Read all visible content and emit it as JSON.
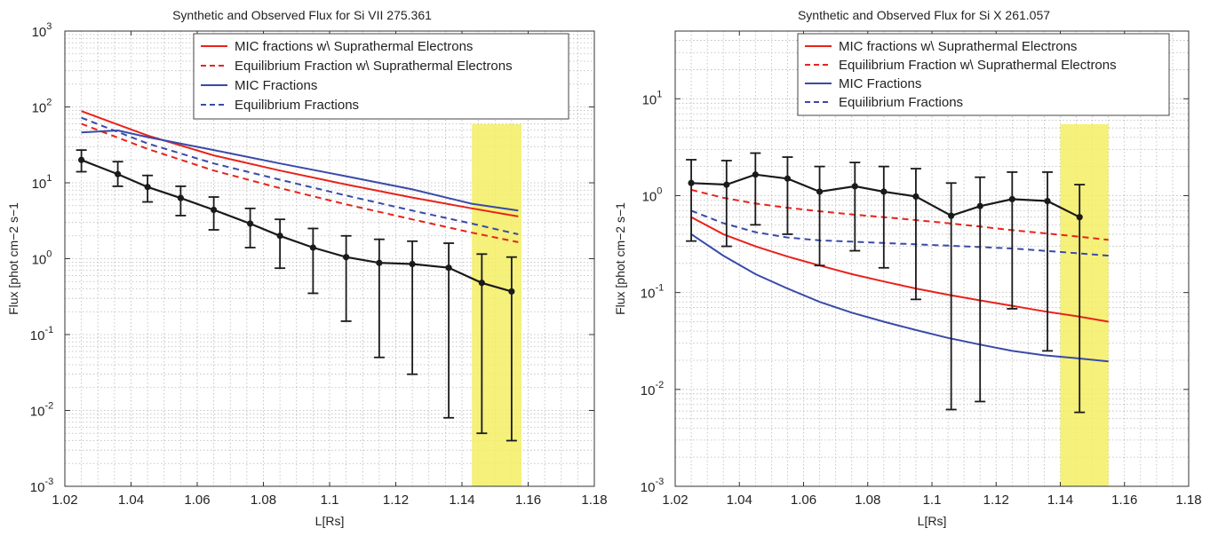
{
  "colors": {
    "mic_suprathermal": "#e8231b",
    "eq_suprathermal": "#e8231b",
    "mic": "#3a4aa8",
    "eq": "#3a4aa8",
    "observed": "#1a1a1a",
    "highlight": "#f3ee63"
  },
  "chart_data": [
    {
      "type": "line",
      "title": "Synthetic and Observed Flux for Si VII 275.361",
      "xlabel": "L[Rs]",
      "ylabel": "Flux [phot cm−2 s−1",
      "yscale": "log",
      "xlim": [
        1.02,
        1.18
      ],
      "ylim": [
        0.001,
        1000
      ],
      "grid": true,
      "legend_position": "top-right",
      "xticks": [
        "1.02",
        "1.04",
        "1.06",
        "1.08",
        "1.1",
        "1.12",
        "1.14",
        "1.16",
        "1.18"
      ],
      "yticks": [
        {
          "base": "10",
          "exp": "-3"
        },
        {
          "base": "10",
          "exp": "-2"
        },
        {
          "base": "10",
          "exp": "-1"
        },
        {
          "base": "10",
          "exp": "0"
        },
        {
          "base": "10",
          "exp": "1"
        },
        {
          "base": "10",
          "exp": "2"
        },
        {
          "base": "10",
          "exp": "3"
        }
      ],
      "highlight_x": [
        1.143,
        1.158
      ],
      "series": [
        {
          "name": "MIC fractions w\\ Suprathermal Electrons",
          "style": "solid",
          "color": "#e8231b",
          "x": [
            1.025,
            1.045,
            1.065,
            1.085,
            1.105,
            1.125,
            1.143,
            1.157
          ],
          "y": [
            88,
            42,
            23,
            14.5,
            9.5,
            6.4,
            4.6,
            3.6
          ]
        },
        {
          "name": "Equilibrium Fraction w\\ Suprathermal Electrons",
          "style": "dashed",
          "color": "#e8231b",
          "x": [
            1.025,
            1.045,
            1.065,
            1.085,
            1.105,
            1.125,
            1.143,
            1.157
          ],
          "y": [
            60,
            28,
            14.5,
            8.5,
            5.2,
            3.3,
            2.2,
            1.65
          ]
        },
        {
          "name": "MIC Fractions",
          "style": "solid",
          "color": "#3a4aa8",
          "x": [
            1.025,
            1.036,
            1.045,
            1.065,
            1.085,
            1.105,
            1.125,
            1.143,
            1.157
          ],
          "y": [
            46,
            49,
            40,
            27,
            18,
            12.2,
            8.2,
            5.3,
            4.3
          ]
        },
        {
          "name": "Equilibrium Fractions",
          "style": "dashed",
          "color": "#3a4aa8",
          "x": [
            1.025,
            1.045,
            1.065,
            1.085,
            1.105,
            1.125,
            1.143,
            1.157
          ],
          "y": [
            72,
            33,
            18,
            11,
            6.8,
            4.3,
            2.9,
            2.1
          ]
        }
      ],
      "observed": {
        "x": [
          1.025,
          1.036,
          1.045,
          1.055,
          1.065,
          1.076,
          1.085,
          1.095,
          1.105,
          1.115,
          1.125,
          1.136,
          1.146,
          1.155
        ],
        "y": [
          20,
          13,
          8.8,
          6.3,
          4.4,
          2.9,
          2.0,
          1.4,
          1.05,
          0.88,
          0.85,
          0.76,
          0.48,
          0.37
        ],
        "lo": [
          14,
          9,
          5.6,
          3.7,
          2.4,
          1.4,
          0.75,
          0.35,
          0.15,
          0.05,
          0.03,
          0.008,
          0.005,
          0.004
        ],
        "hi": [
          27,
          19,
          12.5,
          9,
          6.5,
          4.6,
          3.3,
          2.5,
          2.0,
          1.8,
          1.7,
          1.6,
          1.15,
          1.05
        ]
      }
    },
    {
      "type": "line",
      "title": "Synthetic and Observed Flux for Si X 261.057",
      "xlabel": "L[Rs]",
      "ylabel": "Flux [phot cm−2 s−1",
      "yscale": "log",
      "xlim": [
        1.02,
        1.18
      ],
      "ylim": [
        0.001,
        50
      ],
      "grid": true,
      "legend_position": "top-right",
      "xticks": [
        "1.02",
        "1.04",
        "1.06",
        "1.08",
        "1.1",
        "1.12",
        "1.14",
        "1.16",
        "1.18"
      ],
      "yticks": [
        {
          "base": "10",
          "exp": "-3"
        },
        {
          "base": "10",
          "exp": "-2"
        },
        {
          "base": "10",
          "exp": "-1"
        },
        {
          "base": "10",
          "exp": "0"
        },
        {
          "base": "10",
          "exp": "1"
        }
      ],
      "highlight_x": [
        1.14,
        1.155
      ],
      "series": [
        {
          "name": "MIC fractions w\\ Suprathermal Electrons",
          "style": "solid",
          "color": "#e8231b",
          "x": [
            1.025,
            1.035,
            1.045,
            1.055,
            1.065,
            1.075,
            1.085,
            1.095,
            1.105,
            1.115,
            1.125,
            1.135,
            1.145,
            1.155
          ],
          "y": [
            0.6,
            0.4,
            0.3,
            0.235,
            0.19,
            0.155,
            0.13,
            0.11,
            0.095,
            0.083,
            0.073,
            0.064,
            0.057,
            0.05
          ]
        },
        {
          "name": "Equilibrium Fraction w\\ Suprathermal Electrons",
          "style": "dashed",
          "color": "#e8231b",
          "x": [
            1.025,
            1.035,
            1.045,
            1.055,
            1.065,
            1.075,
            1.085,
            1.095,
            1.105,
            1.115,
            1.125,
            1.135,
            1.145,
            1.155
          ],
          "y": [
            1.15,
            0.95,
            0.83,
            0.75,
            0.69,
            0.64,
            0.6,
            0.56,
            0.52,
            0.48,
            0.44,
            0.41,
            0.38,
            0.35
          ]
        },
        {
          "name": "MIC Fractions",
          "style": "solid",
          "color": "#3a4aa8",
          "x": [
            1.025,
            1.035,
            1.045,
            1.055,
            1.065,
            1.075,
            1.085,
            1.095,
            1.105,
            1.115,
            1.125,
            1.135,
            1.145,
            1.155
          ],
          "y": [
            0.4,
            0.24,
            0.155,
            0.11,
            0.08,
            0.062,
            0.05,
            0.041,
            0.034,
            0.029,
            0.025,
            0.0225,
            0.021,
            0.0195
          ]
        },
        {
          "name": "Equilibrium Fractions",
          "style": "dashed",
          "color": "#3a4aa8",
          "x": [
            1.025,
            1.035,
            1.045,
            1.055,
            1.065,
            1.075,
            1.085,
            1.095,
            1.105,
            1.115,
            1.125,
            1.135,
            1.145,
            1.155
          ],
          "y": [
            0.7,
            0.52,
            0.42,
            0.37,
            0.345,
            0.335,
            0.325,
            0.315,
            0.305,
            0.295,
            0.285,
            0.27,
            0.255,
            0.24
          ]
        }
      ],
      "observed": {
        "x": [
          1.025,
          1.036,
          1.045,
          1.055,
          1.065,
          1.076,
          1.085,
          1.095,
          1.106,
          1.115,
          1.125,
          1.136,
          1.146
        ],
        "y": [
          1.35,
          1.3,
          1.65,
          1.5,
          1.1,
          1.25,
          1.1,
          0.98,
          0.62,
          0.78,
          0.92,
          0.88,
          0.6
        ],
        "lo": [
          0.34,
          0.3,
          0.5,
          0.4,
          0.19,
          0.27,
          0.18,
          0.085,
          0.0062,
          0.0075,
          0.068,
          0.025,
          0.0058
        ],
        "hi": [
          2.35,
          2.3,
          2.75,
          2.5,
          2.0,
          2.2,
          2.0,
          1.9,
          1.35,
          1.55,
          1.75,
          1.75,
          1.3
        ]
      }
    }
  ]
}
